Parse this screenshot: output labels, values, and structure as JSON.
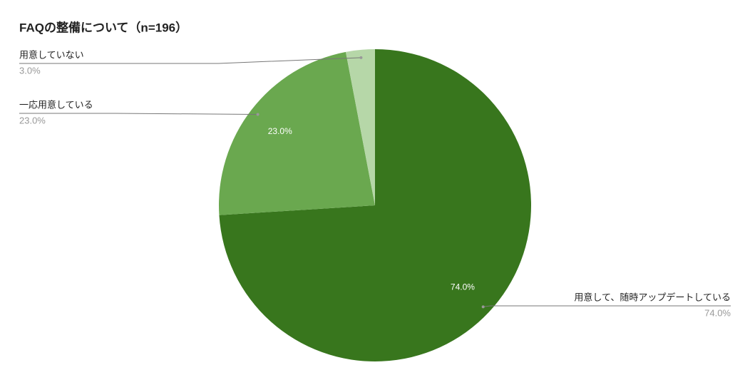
{
  "chart_data": {
    "type": "pie",
    "title": "FAQの整備について（n=196）",
    "categories": [
      "用意して、随時アップデートしている",
      "一応用意している",
      "用意していない"
    ],
    "values": [
      74,
      23,
      3
    ],
    "value_labels": [
      "74.0%",
      "23.0%",
      "3.0%"
    ],
    "colors": [
      "#38761d",
      "#6aa84f",
      "#b6d7a8"
    ]
  }
}
